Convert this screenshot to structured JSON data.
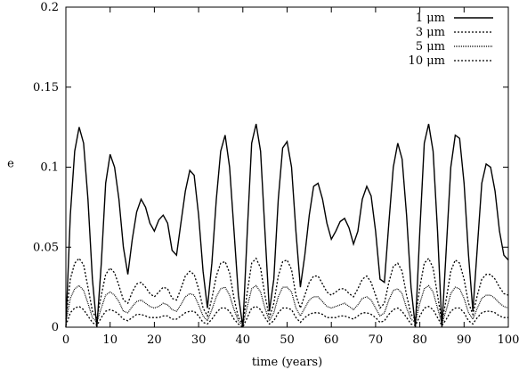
{
  "chart_data": {
    "type": "line",
    "title": "",
    "xlabel": "time (years)",
    "ylabel": "e",
    "xlim": [
      0,
      100
    ],
    "ylim": [
      0,
      0.2
    ],
    "x_ticks": [
      0,
      10,
      20,
      30,
      40,
      50,
      60,
      70,
      80,
      90,
      100
    ],
    "y_ticks": [
      0,
      0.05,
      0.1,
      0.15,
      0.2
    ],
    "x_tick_labels": [
      "0",
      "10",
      "20",
      "30",
      "40",
      "50",
      "60",
      "70",
      "80",
      "90",
      "100"
    ],
    "y_tick_labels": [
      "0",
      "0.05",
      "0.1",
      "0.15",
      "0.2"
    ],
    "grid": false,
    "legend_position": "top-right",
    "series": [
      {
        "name": "1 μm",
        "style": "solid",
        "x": [
          0,
          1,
          2,
          3,
          4,
          5,
          6,
          7,
          8,
          9,
          10,
          11,
          12,
          13,
          14,
          15,
          16,
          17,
          18,
          19,
          20,
          21,
          22,
          23,
          24,
          25,
          26,
          27,
          28,
          29,
          30,
          31,
          32,
          33,
          34,
          35,
          36,
          37,
          38,
          39,
          40,
          41,
          42,
          43,
          44,
          45,
          46,
          47,
          48,
          49,
          50,
          51,
          52,
          53,
          54,
          55,
          56,
          57,
          58,
          59,
          60,
          61,
          62,
          63,
          64,
          65,
          66,
          67,
          68,
          69,
          70,
          71,
          72,
          73,
          74,
          75,
          76,
          77,
          78,
          79,
          80,
          81,
          82,
          83,
          84,
          85,
          86,
          87,
          88,
          89,
          90,
          91,
          92,
          93,
          94,
          95,
          96,
          97,
          98,
          99,
          100
        ],
        "y": [
          0.0,
          0.07,
          0.11,
          0.125,
          0.115,
          0.08,
          0.03,
          0.0,
          0.04,
          0.09,
          0.108,
          0.1,
          0.08,
          0.05,
          0.033,
          0.055,
          0.072,
          0.08,
          0.075,
          0.065,
          0.06,
          0.067,
          0.07,
          0.065,
          0.048,
          0.045,
          0.065,
          0.085,
          0.098,
          0.095,
          0.07,
          0.035,
          0.012,
          0.04,
          0.08,
          0.11,
          0.12,
          0.1,
          0.06,
          0.02,
          0.0,
          0.06,
          0.115,
          0.127,
          0.11,
          0.06,
          0.01,
          0.03,
          0.08,
          0.112,
          0.116,
          0.1,
          0.06,
          0.025,
          0.045,
          0.07,
          0.088,
          0.09,
          0.08,
          0.065,
          0.055,
          0.06,
          0.066,
          0.068,
          0.062,
          0.052,
          0.06,
          0.08,
          0.088,
          0.082,
          0.06,
          0.03,
          0.028,
          0.065,
          0.1,
          0.115,
          0.105,
          0.07,
          0.025,
          0.0,
          0.06,
          0.115,
          0.127,
          0.11,
          0.06,
          0.0,
          0.05,
          0.1,
          0.12,
          0.118,
          0.09,
          0.045,
          0.01,
          0.05,
          0.09,
          0.102,
          0.1,
          0.085,
          0.06,
          0.045,
          0.042
        ]
      },
      {
        "name": "3 μm",
        "style": "dotted",
        "x": [
          0,
          1,
          2,
          3,
          4,
          5,
          6,
          7,
          8,
          9,
          10,
          11,
          12,
          13,
          14,
          15,
          16,
          17,
          18,
          19,
          20,
          21,
          22,
          23,
          24,
          25,
          26,
          27,
          28,
          29,
          30,
          31,
          32,
          33,
          34,
          35,
          36,
          37,
          38,
          39,
          40,
          41,
          42,
          43,
          44,
          45,
          46,
          47,
          48,
          49,
          50,
          51,
          52,
          53,
          54,
          55,
          56,
          57,
          58,
          59,
          60,
          61,
          62,
          63,
          64,
          65,
          66,
          67,
          68,
          69,
          70,
          71,
          72,
          73,
          74,
          75,
          76,
          77,
          78,
          79,
          80,
          81,
          82,
          83,
          84,
          85,
          86,
          87,
          88,
          89,
          90,
          91,
          92,
          93,
          94,
          95,
          96,
          97,
          98,
          99,
          100
        ],
        "y": [
          0.005,
          0.03,
          0.04,
          0.043,
          0.039,
          0.025,
          0.01,
          0.005,
          0.02,
          0.033,
          0.037,
          0.034,
          0.026,
          0.017,
          0.015,
          0.022,
          0.027,
          0.028,
          0.025,
          0.021,
          0.019,
          0.022,
          0.025,
          0.024,
          0.018,
          0.017,
          0.024,
          0.032,
          0.035,
          0.033,
          0.024,
          0.012,
          0.007,
          0.018,
          0.032,
          0.04,
          0.041,
          0.034,
          0.018,
          0.006,
          0.002,
          0.022,
          0.04,
          0.043,
          0.037,
          0.02,
          0.006,
          0.015,
          0.032,
          0.041,
          0.042,
          0.036,
          0.02,
          0.012,
          0.02,
          0.028,
          0.032,
          0.032,
          0.027,
          0.022,
          0.02,
          0.022,
          0.024,
          0.024,
          0.021,
          0.019,
          0.024,
          0.03,
          0.032,
          0.028,
          0.02,
          0.012,
          0.015,
          0.028,
          0.038,
          0.04,
          0.035,
          0.02,
          0.008,
          0.005,
          0.025,
          0.04,
          0.043,
          0.037,
          0.02,
          0.003,
          0.018,
          0.035,
          0.042,
          0.04,
          0.03,
          0.015,
          0.008,
          0.02,
          0.03,
          0.033,
          0.033,
          0.03,
          0.025,
          0.021,
          0.02
        ]
      },
      {
        "name": "5 μm",
        "style": "fine-dotted",
        "x": [
          0,
          1,
          2,
          3,
          4,
          5,
          6,
          7,
          8,
          9,
          10,
          11,
          12,
          13,
          14,
          15,
          16,
          17,
          18,
          19,
          20,
          21,
          22,
          23,
          24,
          25,
          26,
          27,
          28,
          29,
          30,
          31,
          32,
          33,
          34,
          35,
          36,
          37,
          38,
          39,
          40,
          41,
          42,
          43,
          44,
          45,
          46,
          47,
          48,
          49,
          50,
          51,
          52,
          53,
          54,
          55,
          56,
          57,
          58,
          59,
          60,
          61,
          62,
          63,
          64,
          65,
          66,
          67,
          68,
          69,
          70,
          71,
          72,
          73,
          74,
          75,
          76,
          77,
          78,
          79,
          80,
          81,
          82,
          83,
          84,
          85,
          86,
          87,
          88,
          89,
          90,
          91,
          92,
          93,
          94,
          95,
          96,
          97,
          98,
          99,
          100
        ],
        "y": [
          0.003,
          0.018,
          0.024,
          0.026,
          0.023,
          0.015,
          0.006,
          0.003,
          0.012,
          0.02,
          0.022,
          0.02,
          0.016,
          0.01,
          0.009,
          0.013,
          0.016,
          0.017,
          0.015,
          0.013,
          0.012,
          0.013,
          0.015,
          0.014,
          0.011,
          0.01,
          0.014,
          0.019,
          0.021,
          0.02,
          0.014,
          0.007,
          0.004,
          0.011,
          0.019,
          0.024,
          0.025,
          0.02,
          0.011,
          0.004,
          0.001,
          0.013,
          0.024,
          0.026,
          0.022,
          0.012,
          0.004,
          0.009,
          0.019,
          0.025,
          0.025,
          0.022,
          0.012,
          0.007,
          0.012,
          0.017,
          0.019,
          0.019,
          0.016,
          0.013,
          0.012,
          0.013,
          0.014,
          0.015,
          0.013,
          0.011,
          0.014,
          0.018,
          0.019,
          0.017,
          0.012,
          0.007,
          0.009,
          0.017,
          0.023,
          0.024,
          0.021,
          0.012,
          0.005,
          0.003,
          0.015,
          0.024,
          0.026,
          0.022,
          0.012,
          0.002,
          0.011,
          0.021,
          0.025,
          0.024,
          0.018,
          0.009,
          0.005,
          0.012,
          0.018,
          0.02,
          0.02,
          0.018,
          0.015,
          0.013,
          0.012
        ]
      },
      {
        "name": "10 μm",
        "style": "dotted",
        "x": [
          0,
          1,
          2,
          3,
          4,
          5,
          6,
          7,
          8,
          9,
          10,
          11,
          12,
          13,
          14,
          15,
          16,
          17,
          18,
          19,
          20,
          21,
          22,
          23,
          24,
          25,
          26,
          27,
          28,
          29,
          30,
          31,
          32,
          33,
          34,
          35,
          36,
          37,
          38,
          39,
          40,
          41,
          42,
          43,
          44,
          45,
          46,
          47,
          48,
          49,
          50,
          51,
          52,
          53,
          54,
          55,
          56,
          57,
          58,
          59,
          60,
          61,
          62,
          63,
          64,
          65,
          66,
          67,
          68,
          69,
          70,
          71,
          72,
          73,
          74,
          75,
          76,
          77,
          78,
          79,
          80,
          81,
          82,
          83,
          84,
          85,
          86,
          87,
          88,
          89,
          90,
          91,
          92,
          93,
          94,
          95,
          96,
          97,
          98,
          99,
          100
        ],
        "y": [
          0.001,
          0.009,
          0.012,
          0.013,
          0.011,
          0.007,
          0.003,
          0.001,
          0.006,
          0.01,
          0.011,
          0.01,
          0.008,
          0.005,
          0.004,
          0.006,
          0.008,
          0.008,
          0.007,
          0.006,
          0.006,
          0.006,
          0.007,
          0.007,
          0.005,
          0.005,
          0.007,
          0.009,
          0.01,
          0.01,
          0.007,
          0.003,
          0.002,
          0.005,
          0.009,
          0.012,
          0.012,
          0.01,
          0.005,
          0.002,
          0.0,
          0.006,
          0.012,
          0.013,
          0.011,
          0.006,
          0.002,
          0.004,
          0.009,
          0.012,
          0.012,
          0.011,
          0.006,
          0.003,
          0.006,
          0.008,
          0.009,
          0.009,
          0.008,
          0.006,
          0.006,
          0.006,
          0.007,
          0.007,
          0.006,
          0.005,
          0.007,
          0.009,
          0.009,
          0.008,
          0.006,
          0.003,
          0.004,
          0.008,
          0.011,
          0.012,
          0.01,
          0.006,
          0.002,
          0.001,
          0.007,
          0.012,
          0.013,
          0.011,
          0.006,
          0.001,
          0.005,
          0.01,
          0.012,
          0.012,
          0.009,
          0.004,
          0.002,
          0.006,
          0.009,
          0.01,
          0.01,
          0.009,
          0.007,
          0.006,
          0.006
        ]
      }
    ]
  }
}
